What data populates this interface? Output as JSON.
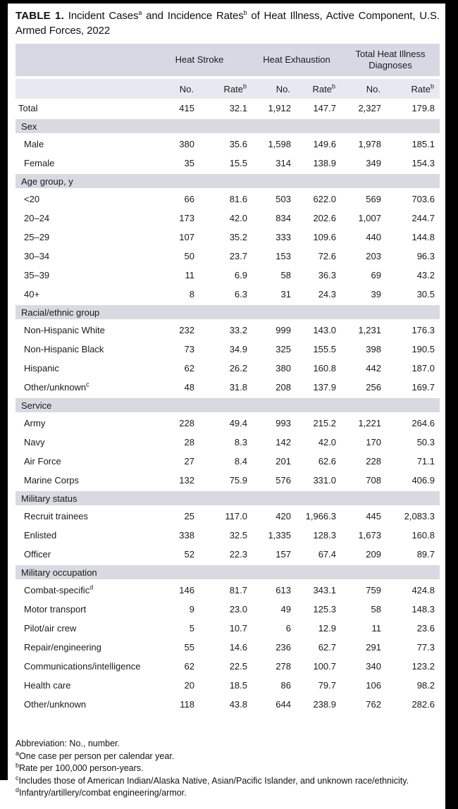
{
  "title": {
    "label": "TABLE 1.",
    "part1": " Incident Cases",
    "sup1": "a",
    "part2": " and Incidence Rates",
    "sup2": "b",
    "part3": " of Heat Illness, Active Component, U.S. Armed Forces, 2022"
  },
  "columns": {
    "group1": "Heat Stroke",
    "group2": "Heat Exhaustion",
    "group3": "Total Heat Illness Diagnoses",
    "no_label": "No.",
    "rate_label": "Rate",
    "rate_sup": "b"
  },
  "sections": [
    {
      "header": null,
      "rows": [
        {
          "label": "Total",
          "total": true,
          "values": [
            "415",
            "32.1",
            "1,912",
            "147.7",
            "2,327",
            "179.8"
          ]
        }
      ]
    },
    {
      "header": "Sex",
      "rows": [
        {
          "label": "Male",
          "values": [
            "380",
            "35.6",
            "1,598",
            "149.6",
            "1,978",
            "185.1"
          ]
        },
        {
          "label": "Female",
          "values": [
            "35",
            "15.5",
            "314",
            "138.9",
            "349",
            "154.3"
          ]
        }
      ]
    },
    {
      "header": "Age group, y",
      "rows": [
        {
          "label": "<20",
          "values": [
            "66",
            "81.6",
            "503",
            "622.0",
            "569",
            "703.6"
          ]
        },
        {
          "label": "20–24",
          "values": [
            "173",
            "42.0",
            "834",
            "202.6",
            "1,007",
            "244.7"
          ]
        },
        {
          "label": "25–29",
          "values": [
            "107",
            "35.2",
            "333",
            "109.6",
            "440",
            "144.8"
          ]
        },
        {
          "label": "30–34",
          "values": [
            "50",
            "23.7",
            "153",
            "72.6",
            "203",
            "96.3"
          ]
        },
        {
          "label": "35–39",
          "values": [
            "11",
            "6.9",
            "58",
            "36.3",
            "69",
            "43.2"
          ]
        },
        {
          "label": "40+",
          "values": [
            "8",
            "6.3",
            "31",
            "24.3",
            "39",
            "30.5"
          ]
        }
      ]
    },
    {
      "header": "Racial/ethnic group",
      "rows": [
        {
          "label": "Non-Hispanic White",
          "values": [
            "232",
            "33.2",
            "999",
            "143.0",
            "1,231",
            "176.3"
          ]
        },
        {
          "label": "Non-Hispanic Black",
          "values": [
            "73",
            "34.9",
            "325",
            "155.5",
            "398",
            "190.5"
          ]
        },
        {
          "label": "Hispanic",
          "values": [
            "62",
            "26.2",
            "380",
            "160.8",
            "442",
            "187.0"
          ]
        },
        {
          "label": "Other/unknown",
          "sup": "c",
          "values": [
            "48",
            "31.8",
            "208",
            "137.9",
            "256",
            "169.7"
          ]
        }
      ]
    },
    {
      "header": "Service",
      "rows": [
        {
          "label": "Army",
          "values": [
            "228",
            "49.4",
            "993",
            "215.2",
            "1,221",
            "264.6"
          ]
        },
        {
          "label": "Navy",
          "values": [
            "28",
            "8.3",
            "142",
            "42.0",
            "170",
            "50.3"
          ]
        },
        {
          "label": "Air Force",
          "values": [
            "27",
            "8.4",
            "201",
            "62.6",
            "228",
            "71.1"
          ]
        },
        {
          "label": "Marine Corps",
          "values": [
            "132",
            "75.9",
            "576",
            "331.0",
            "708",
            "406.9"
          ]
        }
      ]
    },
    {
      "header": "Military status",
      "rows": [
        {
          "label": "Recruit trainees",
          "values": [
            "25",
            "117.0",
            "420",
            "1,966.3",
            "445",
            "2,083.3"
          ]
        },
        {
          "label": "Enlisted",
          "values": [
            "338",
            "32.5",
            "1,335",
            "128.3",
            "1,673",
            "160.8"
          ]
        },
        {
          "label": "Officer",
          "values": [
            "52",
            "22.3",
            "157",
            "67.4",
            "209",
            "89.7"
          ]
        }
      ]
    },
    {
      "header": "Military occupation",
      "rows": [
        {
          "label": "Combat-specific",
          "sup": "d",
          "values": [
            "146",
            "81.7",
            "613",
            "343.1",
            "759",
            "424.8"
          ]
        },
        {
          "label": "Motor transport",
          "values": [
            "9",
            "23.0",
            "49",
            "125.3",
            "58",
            "148.3"
          ]
        },
        {
          "label": "Pilot/air crew",
          "values": [
            "5",
            "10.7",
            "6",
            "12.9",
            "11",
            "23.6"
          ]
        },
        {
          "label": "Repair/engineering",
          "values": [
            "55",
            "14.6",
            "236",
            "62.7",
            "291",
            "77.3"
          ]
        },
        {
          "label": "Communications/intelligence",
          "values": [
            "62",
            "22.5",
            "278",
            "100.7",
            "340",
            "123.2"
          ]
        },
        {
          "label": "Health care",
          "values": [
            "20",
            "18.5",
            "86",
            "79.7",
            "106",
            "98.2"
          ]
        },
        {
          "label": "Other/unknown",
          "values": [
            "118",
            "43.8",
            "644",
            "238.9",
            "762",
            "282.6"
          ]
        }
      ]
    }
  ],
  "footnotes": [
    {
      "sup": "",
      "text": "Abbreviation: No., number."
    },
    {
      "sup": "a",
      "text": "One case per person per calendar year."
    },
    {
      "sup": "b",
      "text": "Rate per 100,000 person-years."
    },
    {
      "sup": "c",
      "text": "Includes those of American Indian/Alaska Native, Asian/Pacific Islander, and unknown race/ethnicity."
    },
    {
      "sup": "d",
      "text": "Infantry/artillery/combat engineering/armor."
    }
  ],
  "colors": {
    "group_header_band": "#d8d8e5",
    "subheader_band": "#e8e8f1",
    "section_band": "#d9d9e1",
    "frame": "#000000"
  }
}
